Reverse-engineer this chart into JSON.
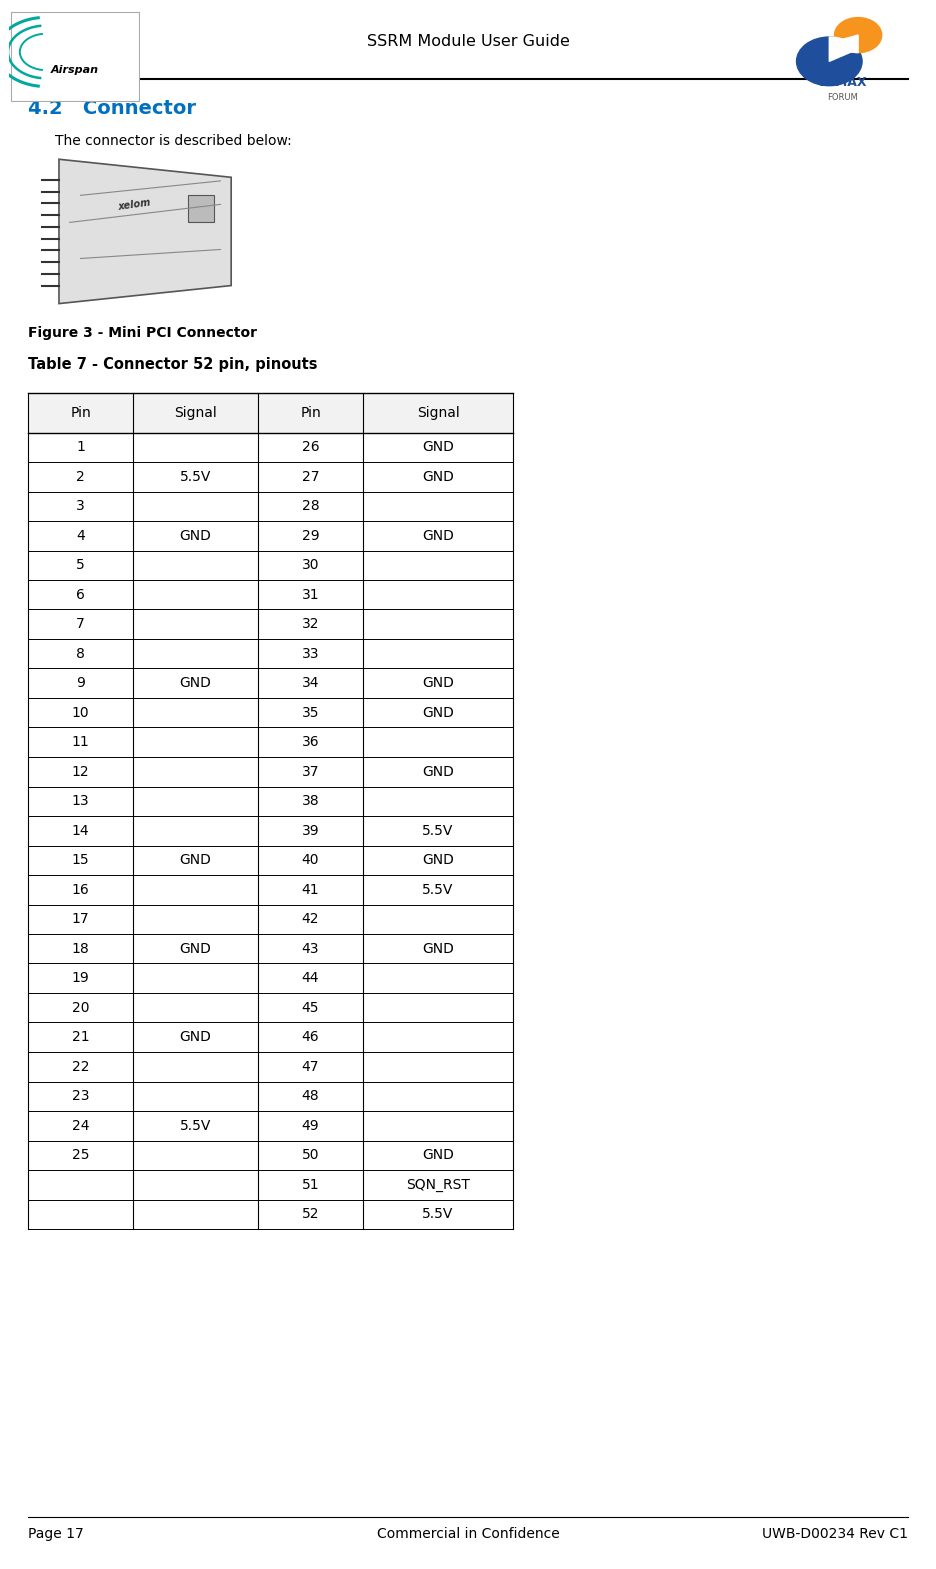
{
  "page_title": "SSRM Module User Guide",
  "section_heading": "4.2   Connector",
  "section_text": "The connector is described below:",
  "figure_caption": "Figure 3 - Mini PCI Connector",
  "table_caption": "Table 7 - Connector 52 pin, pinouts",
  "section_color": "#0070C0",
  "bg_color": "#ffffff",
  "text_color": "#000000",
  "footer_left": "Page 17",
  "footer_center": "Commercial in Confidence",
  "footer_right": "UWB-D00234 Rev C1",
  "table_data": [
    [
      "1",
      "",
      "26",
      "GND"
    ],
    [
      "2",
      "5.5V",
      "27",
      "GND"
    ],
    [
      "3",
      "",
      "28",
      ""
    ],
    [
      "4",
      "GND",
      "29",
      "GND"
    ],
    [
      "5",
      "",
      "30",
      ""
    ],
    [
      "6",
      "",
      "31",
      ""
    ],
    [
      "7",
      "",
      "32",
      ""
    ],
    [
      "8",
      "",
      "33",
      ""
    ],
    [
      "9",
      "GND",
      "34",
      "GND"
    ],
    [
      "10",
      "",
      "35",
      "GND"
    ],
    [
      "11",
      "",
      "36",
      ""
    ],
    [
      "12",
      "",
      "37",
      "GND"
    ],
    [
      "13",
      "",
      "38",
      ""
    ],
    [
      "14",
      "",
      "39",
      "5.5V"
    ],
    [
      "15",
      "GND",
      "40",
      "GND"
    ],
    [
      "16",
      "",
      "41",
      "5.5V"
    ],
    [
      "17",
      "",
      "42",
      ""
    ],
    [
      "18",
      "GND",
      "43",
      "GND"
    ],
    [
      "19",
      "",
      "44",
      ""
    ],
    [
      "20",
      "",
      "45",
      ""
    ],
    [
      "21",
      "GND",
      "46",
      ""
    ],
    [
      "22",
      "",
      "47",
      ""
    ],
    [
      "23",
      "",
      "48",
      ""
    ],
    [
      "24",
      "5.5V",
      "49",
      ""
    ],
    [
      "25",
      "",
      "50",
      "GND"
    ],
    [
      "",
      "",
      "51",
      "SQN_RST"
    ],
    [
      "",
      "",
      "52",
      "5.5V"
    ]
  ],
  "col_headers": [
    "Pin",
    "Signal",
    "Pin",
    "Signal"
  ]
}
